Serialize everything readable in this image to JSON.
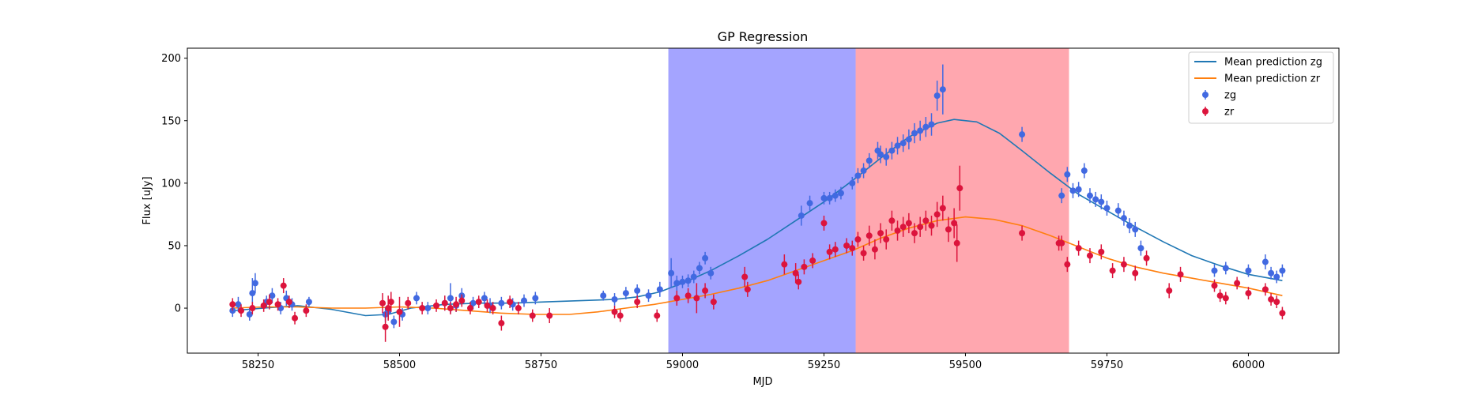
{
  "chart_data": {
    "type": "scatter",
    "title": "GP Regression",
    "xlabel": "MJD",
    "ylabel": "Flux [uJy]",
    "xlim": [
      58125,
      60160
    ],
    "ylim": [
      -36,
      208
    ],
    "xticks": [
      58250,
      58500,
      58750,
      59000,
      59250,
      59500,
      59750,
      60000
    ],
    "yticks": [
      0,
      50,
      100,
      150,
      200
    ],
    "grid": false,
    "legend_position": "top-right",
    "colors": {
      "zg_line": "#1f77b4",
      "zr_line": "#ff7f0e",
      "zg_points": "#4169e1",
      "zr_points": "#dc143c",
      "span_blue": "#4a4aff",
      "span_red": "#ff3b4d"
    },
    "spans": [
      {
        "name": "blue-span",
        "x_start": 58975,
        "x_end": 59306,
        "color": "#4a4aff",
        "alpha": 0.5
      },
      {
        "name": "red-span",
        "x_start": 59306,
        "x_end": 59683,
        "color": "#ff3b4d",
        "alpha": 0.45
      }
    ],
    "series": [
      {
        "name": "Mean prediction zg",
        "kind": "line",
        "color": "#1f77b4",
        "x": [
          58205,
          58260,
          58320,
          58380,
          58440,
          58480,
          58520,
          58580,
          58640,
          58700,
          58760,
          58820,
          58880,
          58920,
          58960,
          59000,
          59050,
          59100,
          59150,
          59200,
          59250,
          59300,
          59350,
          59400,
          59450,
          59480,
          59520,
          59560,
          59600,
          59650,
          59700,
          59750,
          59800,
          59850,
          59900,
          59950,
          60000,
          60060
        ],
        "y": [
          -2,
          0,
          2,
          -1,
          -6,
          -5,
          0,
          3,
          4,
          4,
          5,
          6,
          7,
          9,
          13,
          20,
          30,
          42,
          55,
          70,
          85,
          102,
          120,
          137,
          148,
          151,
          149,
          140,
          126,
          108,
          91,
          78,
          65,
          53,
          42,
          34,
          27,
          22
        ]
      },
      {
        "name": "Mean prediction zr",
        "kind": "line",
        "color": "#ff7f0e",
        "x": [
          58205,
          58260,
          58320,
          58380,
          58440,
          58500,
          58560,
          58620,
          58680,
          58740,
          58800,
          58850,
          58900,
          58950,
          59000,
          59050,
          59100,
          59150,
          59200,
          59250,
          59300,
          59350,
          59400,
          59450,
          59500,
          59550,
          59600,
          59650,
          59700,
          59750,
          59800,
          59850,
          59900,
          59950,
          60000,
          60060
        ],
        "y": [
          0,
          1,
          1,
          0,
          0,
          1,
          0,
          -2,
          -4,
          -5,
          -5,
          -3,
          0,
          3,
          7,
          11,
          16,
          22,
          30,
          38,
          46,
          56,
          64,
          70,
          73,
          71,
          66,
          58,
          49,
          40,
          33,
          28,
          24,
          20,
          16,
          10
        ]
      },
      {
        "name": "zg",
        "kind": "errorbar",
        "color": "#4169e1",
        "x": [
          58205,
          58215,
          58235,
          58240,
          58245,
          58265,
          58275,
          58290,
          58300,
          58310,
          58340,
          58475,
          58480,
          58490,
          58505,
          58530,
          58550,
          58580,
          58590,
          58600,
          58610,
          58630,
          58650,
          58660,
          58680,
          58700,
          58720,
          58740,
          58860,
          58880,
          58900,
          58920,
          58940,
          58960,
          58980,
          58990,
          59000,
          59010,
          59020,
          59030,
          59040,
          59050,
          59210,
          59225,
          59250,
          59260,
          59270,
          59280,
          59300,
          59310,
          59320,
          59330,
          59345,
          59350,
          59360,
          59370,
          59380,
          59390,
          59400,
          59410,
          59420,
          59430,
          59440,
          59450,
          59460,
          59600,
          59670,
          59680,
          59690,
          59700,
          59710,
          59720,
          59730,
          59740,
          59750,
          59770,
          59780,
          59790,
          59800,
          59810,
          59940,
          59960,
          60000,
          60030,
          60040,
          60050,
          60060
        ],
        "y": [
          -2,
          3,
          -5,
          12,
          20,
          5,
          10,
          0,
          8,
          3,
          5,
          -5,
          -3,
          -11,
          -5,
          8,
          0,
          4,
          8,
          2,
          10,
          4,
          8,
          2,
          4,
          3,
          6,
          8,
          10,
          7,
          12,
          14,
          10,
          15,
          28,
          20,
          21,
          22,
          25,
          32,
          40,
          28,
          74,
          84,
          88,
          88,
          90,
          92,
          100,
          106,
          110,
          118,
          126,
          123,
          121,
          126,
          130,
          132,
          135,
          140,
          142,
          145,
          147,
          170,
          175,
          139,
          90,
          107,
          94,
          95,
          110,
          90,
          87,
          85,
          80,
          78,
          72,
          66,
          63,
          48,
          30,
          32,
          30,
          37,
          28,
          25,
          30
        ],
        "err": [
          5,
          6,
          5,
          12,
          8,
          5,
          6,
          5,
          6,
          5,
          4,
          6,
          6,
          5,
          5,
          5,
          5,
          6,
          12,
          5,
          6,
          5,
          5,
          6,
          5,
          5,
          5,
          5,
          4,
          5,
          5,
          5,
          5,
          6,
          12,
          6,
          5,
          5,
          5,
          5,
          5,
          5,
          8,
          6,
          5,
          5,
          5,
          5,
          5,
          6,
          6,
          6,
          7,
          7,
          7,
          7,
          7,
          7,
          8,
          8,
          8,
          8,
          9,
          12,
          20,
          6,
          6,
          6,
          6,
          6,
          6,
          6,
          6,
          6,
          6,
          6,
          6,
          6,
          6,
          6,
          5,
          5,
          5,
          6,
          5,
          5,
          5
        ]
      },
      {
        "name": "zr",
        "kind": "errorbar",
        "color": "#dc143c",
        "x": [
          58205,
          58220,
          58240,
          58260,
          58270,
          58285,
          58295,
          58305,
          58315,
          58335,
          58470,
          58475,
          58480,
          58485,
          58500,
          58515,
          58540,
          58565,
          58580,
          58590,
          58600,
          58610,
          58625,
          58640,
          58655,
          58665,
          58680,
          58695,
          58710,
          58735,
          58765,
          58880,
          58890,
          58920,
          58955,
          58990,
          59010,
          59025,
          59040,
          59055,
          59110,
          59115,
          59180,
          59200,
          59205,
          59215,
          59230,
          59250,
          59260,
          59270,
          59290,
          59300,
          59310,
          59320,
          59330,
          59340,
          59350,
          59360,
          59370,
          59380,
          59390,
          59400,
          59410,
          59420,
          59430,
          59440,
          59450,
          59460,
          59470,
          59480,
          59485,
          59490,
          59600,
          59665,
          59670,
          59680,
          59700,
          59720,
          59740,
          59760,
          59780,
          59800,
          59820,
          59860,
          59880,
          59940,
          59950,
          59960,
          59980,
          60000,
          60030,
          60040,
          60050,
          60060
        ],
        "y": [
          3,
          -2,
          0,
          2,
          5,
          3,
          18,
          5,
          -8,
          -2,
          4,
          -15,
          0,
          5,
          -3,
          4,
          0,
          2,
          4,
          0,
          3,
          6,
          0,
          5,
          2,
          0,
          -12,
          5,
          0,
          -6,
          -6,
          -3,
          -6,
          5,
          -6,
          8,
          10,
          8,
          14,
          5,
          25,
          15,
          35,
          28,
          21,
          33,
          38,
          68,
          45,
          47,
          50,
          48,
          55,
          44,
          58,
          47,
          60,
          55,
          70,
          62,
          65,
          68,
          60,
          65,
          70,
          66,
          75,
          80,
          63,
          68,
          52,
          96,
          60,
          52,
          52,
          35,
          48,
          42,
          45,
          30,
          35,
          28,
          40,
          14,
          27,
          18,
          10,
          8,
          20,
          12,
          15,
          7,
          5,
          -4
        ],
        "err": [
          5,
          5,
          5,
          5,
          6,
          5,
          6,
          5,
          5,
          5,
          8,
          12,
          10,
          8,
          12,
          5,
          5,
          5,
          6,
          5,
          6,
          5,
          5,
          5,
          5,
          5,
          6,
          5,
          5,
          5,
          6,
          5,
          5,
          5,
          5,
          6,
          6,
          12,
          6,
          6,
          8,
          6,
          8,
          8,
          6,
          6,
          6,
          6,
          6,
          6,
          6,
          6,
          6,
          6,
          8,
          8,
          8,
          8,
          8,
          8,
          8,
          8,
          8,
          8,
          8,
          8,
          10,
          10,
          10,
          12,
          15,
          18,
          6,
          6,
          6,
          6,
          6,
          6,
          6,
          6,
          6,
          6,
          6,
          6,
          6,
          5,
          5,
          5,
          5,
          5,
          5,
          5,
          5,
          5
        ]
      }
    ]
  },
  "legend": {
    "items": [
      {
        "label": "Mean prediction zg",
        "kind": "line",
        "color": "#1f77b4"
      },
      {
        "label": "Mean prediction zr",
        "kind": "line",
        "color": "#ff7f0e"
      },
      {
        "label": "zg",
        "kind": "marker",
        "color": "#4169e1"
      },
      {
        "label": "zr",
        "kind": "marker",
        "color": "#dc143c"
      }
    ]
  }
}
